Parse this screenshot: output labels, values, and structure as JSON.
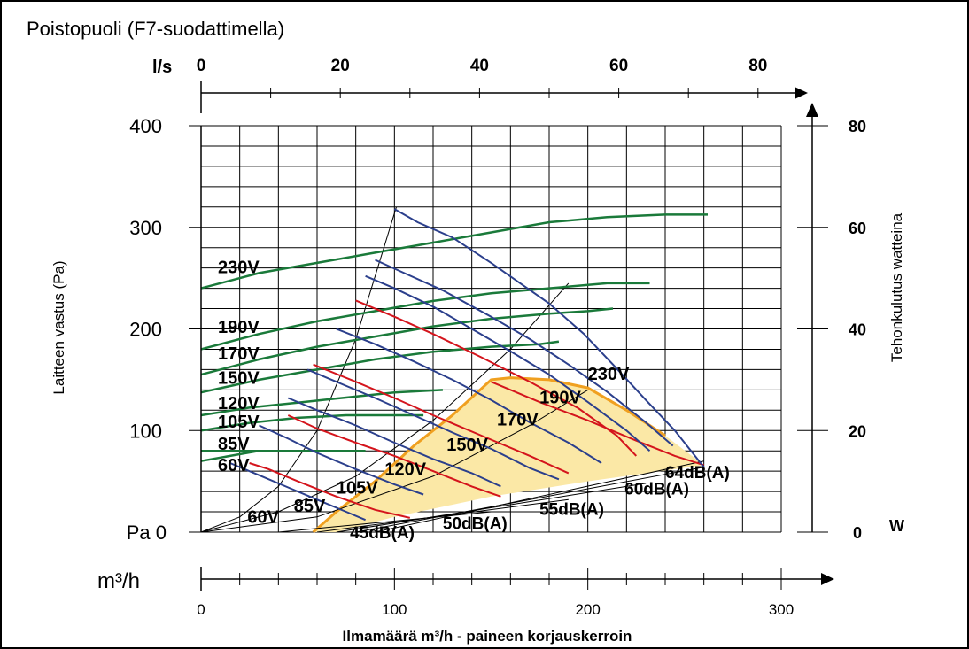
{
  "chart_data": {
    "type": "line",
    "title": "Poistopuoli (F7-suodattimella)",
    "xlabel": "Ilmamäärä m³/h - paineen korjauskerroin",
    "ylabel": "Laitteen vastus (Pa)",
    "y2label": "Tehonkulutus watteina",
    "x_unit_label": "m³/h",
    "x2_unit_label": "l/s",
    "y_unit_label": "Pa",
    "y2_unit_label": "W",
    "xlim": [
      0,
      300
    ],
    "ylim": [
      0,
      400
    ],
    "x_ticks": [
      "0",
      "100",
      "200",
      "300"
    ],
    "x2_ticks": [
      "0",
      "20",
      "40",
      "60",
      "80"
    ],
    "y_ticks": [
      "Pa 0",
      "100",
      "200",
      "300",
      "400"
    ],
    "y2_ticks": [
      "0",
      "20",
      "40",
      "60",
      "80"
    ],
    "y2_zero_unit": "W",
    "grid": true,
    "colors": {
      "fan_curve": "#2b3f8c",
      "power_curve": "#1a7a3a",
      "sound_curve": "#d4141c",
      "operating_area_fill": "#fbe8a6",
      "operating_area_border": "#f0a020",
      "sound_lines": "#000000"
    },
    "fan_curves": [
      {
        "name": "230V",
        "points": [
          [
            100,
            318
          ],
          [
            112,
            305
          ],
          [
            130,
            290
          ],
          [
            150,
            265
          ],
          [
            165,
            245
          ],
          [
            180,
            225
          ],
          [
            198,
            195
          ],
          [
            213,
            165
          ],
          [
            230,
            130
          ],
          [
            245,
            100
          ],
          [
            260,
            64
          ]
        ]
      },
      {
        "name": "190V",
        "points": [
          [
            90,
            268
          ],
          [
            105,
            255
          ],
          [
            125,
            238
          ],
          [
            150,
            212
          ],
          [
            170,
            190
          ],
          [
            190,
            165
          ],
          [
            210,
            138
          ],
          [
            230,
            108
          ],
          [
            244,
            85
          ]
        ]
      },
      {
        "name": "170V",
        "points": [
          [
            85,
            252
          ],
          [
            100,
            240
          ],
          [
            120,
            222
          ],
          [
            140,
            200
          ],
          [
            160,
            178
          ],
          [
            180,
            155
          ],
          [
            200,
            128
          ],
          [
            220,
            100
          ],
          [
            232,
            80
          ]
        ]
      },
      {
        "name": "150V",
        "points": [
          [
            70,
            200
          ],
          [
            90,
            185
          ],
          [
            110,
            168
          ],
          [
            130,
            150
          ],
          [
            150,
            130
          ],
          [
            170,
            108
          ],
          [
            190,
            88
          ],
          [
            207,
            68
          ]
        ]
      },
      {
        "name": "120V",
        "points": [
          [
            55,
            160
          ],
          [
            70,
            148
          ],
          [
            90,
            132
          ],
          [
            110,
            115
          ],
          [
            130,
            98
          ],
          [
            150,
            82
          ],
          [
            170,
            63
          ],
          [
            185,
            52
          ]
        ]
      },
      {
        "name": "105V",
        "points": [
          [
            45,
            132
          ],
          [
            60,
            120
          ],
          [
            80,
            105
          ],
          [
            100,
            88
          ],
          [
            120,
            72
          ],
          [
            140,
            58
          ],
          [
            155,
            45
          ]
        ]
      },
      {
        "name": "85V",
        "points": [
          [
            30,
            105
          ],
          [
            45,
            92
          ],
          [
            60,
            78
          ],
          [
            80,
            62
          ],
          [
            100,
            47
          ],
          [
            115,
            37
          ]
        ]
      },
      {
        "name": "60V",
        "points": [
          [
            15,
            68
          ],
          [
            30,
            56
          ],
          [
            45,
            44
          ],
          [
            60,
            32
          ],
          [
            75,
            20
          ],
          [
            85,
            12
          ]
        ]
      }
    ],
    "power_curves": [
      {
        "name": "230V",
        "points": [
          [
            0,
            48
          ],
          [
            30,
            51
          ],
          [
            60,
            53
          ],
          [
            90,
            55
          ],
          [
            120,
            57
          ],
          [
            150,
            59
          ],
          [
            180,
            61
          ],
          [
            210,
            62
          ],
          [
            240,
            62.5
          ],
          [
            262,
            62.5
          ]
        ]
      },
      {
        "name": "190V",
        "points": [
          [
            0,
            36
          ],
          [
            30,
            39
          ],
          [
            60,
            41.5
          ],
          [
            90,
            43.5
          ],
          [
            120,
            45.5
          ],
          [
            150,
            47
          ],
          [
            180,
            48
          ],
          [
            210,
            49
          ],
          [
            232,
            49
          ]
        ]
      },
      {
        "name": "170V",
        "points": [
          [
            0,
            31
          ],
          [
            30,
            34
          ],
          [
            60,
            36.5
          ],
          [
            90,
            38.5
          ],
          [
            120,
            40.5
          ],
          [
            150,
            42
          ],
          [
            180,
            43
          ],
          [
            200,
            43.5
          ],
          [
            213,
            44
          ]
        ]
      },
      {
        "name": "150V",
        "points": [
          [
            0,
            27.5
          ],
          [
            30,
            30
          ],
          [
            60,
            32
          ],
          [
            90,
            34
          ],
          [
            120,
            35.5
          ],
          [
            150,
            36.5
          ],
          [
            175,
            37
          ],
          [
            185,
            37.5
          ]
        ]
      },
      {
        "name": "120V",
        "points": [
          [
            0,
            23
          ],
          [
            25,
            24.5
          ],
          [
            50,
            25.5
          ],
          [
            75,
            26.5
          ],
          [
            100,
            27.5
          ],
          [
            125,
            28
          ]
        ]
      },
      {
        "name": "105V",
        "points": [
          [
            0,
            20
          ],
          [
            25,
            21.5
          ],
          [
            50,
            22.5
          ],
          [
            75,
            23
          ],
          [
            100,
            23
          ],
          [
            115,
            23
          ]
        ]
      },
      {
        "name": "85V",
        "points": [
          [
            0,
            16
          ],
          [
            20,
            16
          ],
          [
            40,
            16
          ],
          [
            60,
            16
          ],
          [
            75,
            16
          ],
          [
            85,
            16
          ]
        ]
      },
      {
        "name": "60V",
        "points": [
          [
            0,
            14
          ],
          [
            15,
            15
          ],
          [
            30,
            16
          ],
          [
            45,
            16
          ],
          [
            60,
            16
          ],
          [
            70,
            16
          ]
        ]
      }
    ],
    "system_curves": [
      {
        "points": [
          [
            0,
            0
          ],
          [
            20,
            15
          ],
          [
            40,
            45
          ],
          [
            60,
            100
          ],
          [
            80,
            190
          ],
          [
            101,
            320
          ]
        ]
      },
      {
        "points": [
          [
            0,
            0
          ],
          [
            40,
            20
          ],
          [
            80,
            55
          ],
          [
            120,
            110
          ],
          [
            160,
            180
          ],
          [
            190,
            245
          ]
        ]
      },
      {
        "points": [
          [
            0,
            0
          ],
          [
            60,
            15
          ],
          [
            120,
            55
          ],
          [
            170,
            105
          ],
          [
            200,
            140
          ]
        ]
      }
    ],
    "sound_curves": [
      {
        "name": "45dB(A)",
        "points": [
          [
            25,
            68
          ],
          [
            35,
            62
          ],
          [
            50,
            50
          ],
          [
            70,
            35
          ],
          [
            90,
            22
          ],
          [
            108,
            14
          ]
        ]
      },
      {
        "name": "50dB(A)",
        "points": [
          [
            45,
            115
          ],
          [
            60,
            102
          ],
          [
            80,
            88
          ],
          [
            100,
            75
          ],
          [
            120,
            60
          ],
          [
            140,
            45
          ],
          [
            155,
            35
          ]
        ]
      },
      {
        "name": "55dB(A)",
        "points": [
          [
            58,
            165
          ],
          [
            80,
            148
          ],
          [
            100,
            132
          ],
          [
            120,
            115
          ],
          [
            145,
            95
          ],
          [
            170,
            75
          ],
          [
            190,
            58
          ]
        ]
      },
      {
        "name": "60dB(A)",
        "points": [
          [
            80,
            228
          ],
          [
            100,
            212
          ],
          [
            120,
            195
          ],
          [
            145,
            172
          ],
          [
            170,
            148
          ],
          [
            195,
            122
          ],
          [
            215,
            95
          ],
          [
            225,
            75
          ]
        ]
      },
      {
        "name": "64dB(A)",
        "points": [
          [
            150,
            148
          ],
          [
            175,
            128
          ],
          [
            200,
            110
          ],
          [
            225,
            90
          ],
          [
            245,
            75
          ],
          [
            260,
            66
          ]
        ]
      }
    ],
    "sound_lines": [
      {
        "name": "45dB(A)",
        "points": [
          [
            40,
            0
          ],
          [
            150,
            20
          ]
        ]
      },
      {
        "name": "50dB(A)",
        "points": [
          [
            60,
            0
          ],
          [
            190,
            32
          ]
        ]
      },
      {
        "name": "55dB(A)",
        "points": [
          [
            70,
            0
          ],
          [
            230,
            48
          ]
        ]
      },
      {
        "name": "60dB(A)",
        "points": [
          [
            80,
            0
          ],
          [
            260,
            64
          ]
        ]
      },
      {
        "name": "64dB(A)",
        "points": [
          [
            90,
            0
          ],
          [
            260,
            70
          ]
        ]
      }
    ],
    "operating_area": [
      [
        58,
        0
      ],
      [
        70,
        20
      ],
      [
        90,
        50
      ],
      [
        110,
        85
      ],
      [
        130,
        115
      ],
      [
        150,
        150
      ],
      [
        160,
        152
      ],
      [
        180,
        150
      ],
      [
        200,
        142
      ],
      [
        220,
        120
      ],
      [
        240,
        95
      ],
      [
        260,
        66
      ],
      [
        200,
        50
      ],
      [
        150,
        35
      ],
      [
        100,
        15
      ],
      [
        70,
        0
      ]
    ],
    "labels_fan": [
      {
        "text": "230V",
        "x": 200,
        "y": 150
      },
      {
        "text": "190V",
        "x": 175,
        "y": 127
      },
      {
        "text": "170V",
        "x": 153,
        "y": 105
      },
      {
        "text": "150V",
        "x": 127,
        "y": 80
      },
      {
        "text": "120V",
        "x": 95,
        "y": 56
      },
      {
        "text": "105V",
        "x": 70,
        "y": 38
      },
      {
        "text": "85V",
        "x": 48,
        "y": 20
      },
      {
        "text": "60V",
        "x": 24,
        "y": 9
      }
    ],
    "labels_power": [
      {
        "text": "230V",
        "x": 8,
        "y": 255
      },
      {
        "text": "190V",
        "x": 8,
        "y": 196
      },
      {
        "text": "170V",
        "x": 8,
        "y": 170
      },
      {
        "text": "150V",
        "x": 8,
        "y": 146
      },
      {
        "text": "120V",
        "x": 8,
        "y": 121
      },
      {
        "text": "105V",
        "x": 8,
        "y": 103
      },
      {
        "text": "85V",
        "x": 8,
        "y": 81
      },
      {
        "text": "60V",
        "x": 8,
        "y": 60
      }
    ],
    "labels_sound": [
      {
        "text": "45dB(A)",
        "x": 77,
        "y": -6
      },
      {
        "text": "50dB(A)",
        "x": 125,
        "y": 3
      },
      {
        "text": "55dB(A)",
        "x": 175,
        "y": 17
      },
      {
        "text": "60dB(A)",
        "x": 219,
        "y": 37
      },
      {
        "text": "64dB(A)",
        "x": 240,
        "y": 53
      }
    ]
  }
}
